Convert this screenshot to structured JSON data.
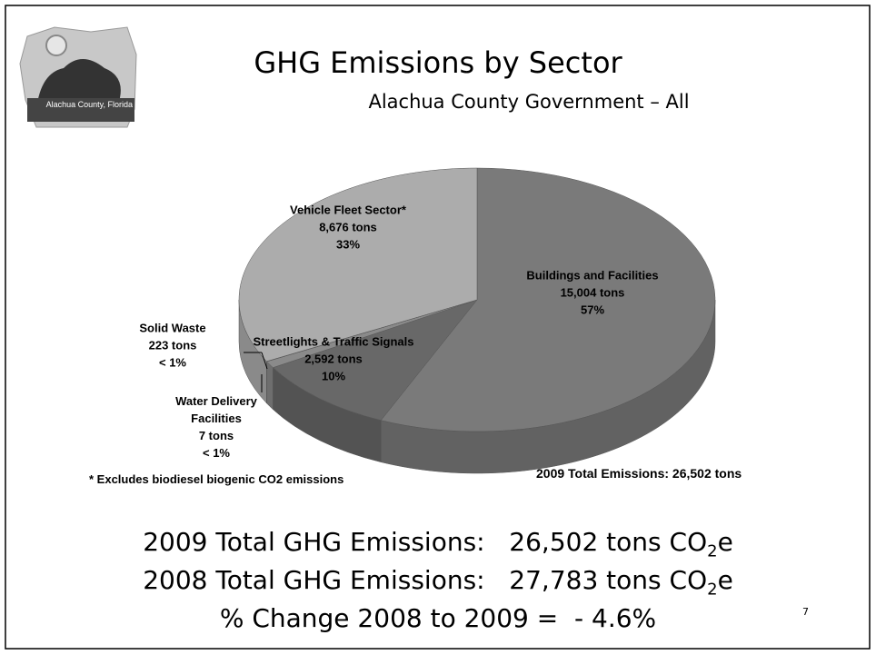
{
  "logo_text": "Alachua County, Florida",
  "chart_data": {
    "type": "pie",
    "title": "GHG Emissions by Sector",
    "subtitle": "Alachua County Government – All",
    "categories": [
      "Buildings and Facilities",
      "Streetlights & Traffic Signals",
      "Solid Waste",
      "Water Delivery Facilities",
      "Vehicle Fleet Sector*"
    ],
    "values": [
      15004,
      2592,
      223,
      7,
      8676
    ],
    "value_labels": [
      "15,004 tons",
      "2,592 tons",
      "223 tons",
      "7 tons",
      "8,676 tons"
    ],
    "percent_labels": [
      "57%",
      "10%",
      "< 1%",
      "< 1%",
      "33%"
    ],
    "colors": [
      "#7a7a7a",
      "#686868",
      "#8a8a8a",
      "#9a9a9a",
      "#acacac"
    ],
    "footnote": "* Excludes biodiesel biogenic CO2 emissions",
    "total_label": "2009 Total Emissions: 26,502 tons"
  },
  "summary": [
    {
      "label": "2009 Total GHG Emissions:",
      "value": "26,502 tons CO",
      "sub": "2",
      "suffix": "e"
    },
    {
      "label": "2008 Total GHG Emissions:",
      "value": "27,783 tons CO",
      "sub": "2",
      "suffix": "e"
    },
    {
      "label": "% Change 2008 to 2009 =  - 4.6%"
    }
  ],
  "page_number": "7"
}
